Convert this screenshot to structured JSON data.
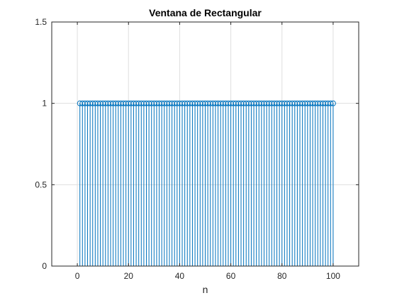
{
  "chart_data": {
    "type": "stem",
    "title": "Ventana de Rectangular",
    "xlabel": "n",
    "ylabel": "",
    "xlim": [
      -10,
      110
    ],
    "ylim": [
      0,
      1.5
    ],
    "xticks": [
      0,
      20,
      40,
      60,
      80,
      100
    ],
    "yticks": [
      0,
      0.5,
      1,
      1.5
    ],
    "xtick_labels": [
      "0",
      "20",
      "40",
      "60",
      "80",
      "100"
    ],
    "ytick_labels": [
      "0",
      "0.5",
      "1",
      "1.5"
    ],
    "grid": true,
    "series": [
      {
        "x": [
          1,
          2,
          3,
          4,
          5,
          6,
          7,
          8,
          9,
          10,
          11,
          12,
          13,
          14,
          15,
          16,
          17,
          18,
          19,
          20,
          21,
          22,
          23,
          24,
          25,
          26,
          27,
          28,
          29,
          30,
          31,
          32,
          33,
          34,
          35,
          36,
          37,
          38,
          39,
          40,
          41,
          42,
          43,
          44,
          45,
          46,
          47,
          48,
          49,
          50,
          51,
          52,
          53,
          54,
          55,
          56,
          57,
          58,
          59,
          60,
          61,
          62,
          63,
          64,
          65,
          66,
          67,
          68,
          69,
          70,
          71,
          72,
          73,
          74,
          75,
          76,
          77,
          78,
          79,
          80,
          81,
          82,
          83,
          84,
          85,
          86,
          87,
          88,
          89,
          90,
          91,
          92,
          93,
          94,
          95,
          96,
          97,
          98,
          99,
          100
        ],
        "y": [
          1,
          1,
          1,
          1,
          1,
          1,
          1,
          1,
          1,
          1,
          1,
          1,
          1,
          1,
          1,
          1,
          1,
          1,
          1,
          1,
          1,
          1,
          1,
          1,
          1,
          1,
          1,
          1,
          1,
          1,
          1,
          1,
          1,
          1,
          1,
          1,
          1,
          1,
          1,
          1,
          1,
          1,
          1,
          1,
          1,
          1,
          1,
          1,
          1,
          1,
          1,
          1,
          1,
          1,
          1,
          1,
          1,
          1,
          1,
          1,
          1,
          1,
          1,
          1,
          1,
          1,
          1,
          1,
          1,
          1,
          1,
          1,
          1,
          1,
          1,
          1,
          1,
          1,
          1,
          1,
          1,
          1,
          1,
          1,
          1,
          1,
          1,
          1,
          1,
          1,
          1,
          1,
          1,
          1,
          1,
          1,
          1,
          1,
          1,
          1
        ],
        "color": "#0072BD"
      }
    ],
    "colors": {
      "axes": "#262626",
      "grid": "#dfdfdf",
      "background": "#ffffff"
    }
  }
}
